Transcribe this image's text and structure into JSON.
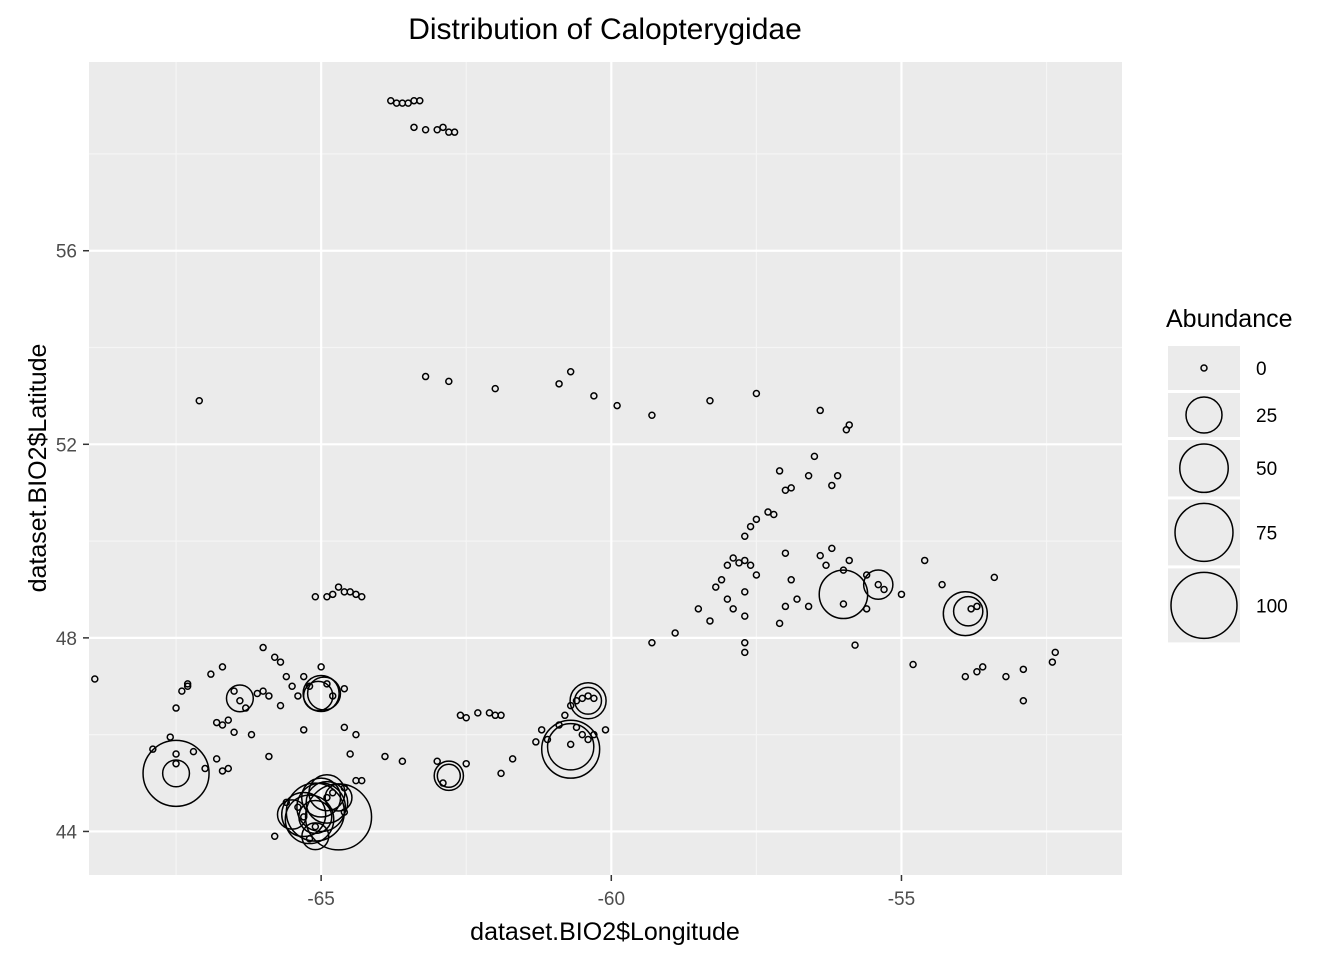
{
  "chart_data": {
    "type": "scatter",
    "title": "Distribution of Calopterygidae",
    "xlabel": "dataset.BIO2$Longitude",
    "ylabel": "dataset.BIO2$Latitude",
    "xlim": [
      -69.0,
      -51.2
    ],
    "ylim": [
      43.1,
      59.9
    ],
    "x_ticks": [
      -65,
      -60,
      -55
    ],
    "y_ticks": [
      44,
      48,
      52,
      56
    ],
    "x_tick_labels": [
      "-65",
      "-60",
      "-55"
    ],
    "y_tick_labels": [
      "44",
      "48",
      "52",
      "56"
    ],
    "grid": true,
    "legend": {
      "title": "Abundance",
      "position": "right",
      "entries": [
        {
          "label": "0",
          "value": 0
        },
        {
          "label": "25",
          "value": 25
        },
        {
          "label": "50",
          "value": 50
        },
        {
          "label": "75",
          "value": 75
        },
        {
          "label": "100",
          "value": 100
        }
      ]
    },
    "series": [
      {
        "points": [
          [
            -63.8,
            59.1,
            0
          ],
          [
            -63.7,
            59.05,
            0
          ],
          [
            -63.6,
            59.05,
            0
          ],
          [
            -63.5,
            59.05,
            0
          ],
          [
            -63.4,
            59.1,
            0
          ],
          [
            -63.3,
            59.1,
            0
          ],
          [
            -63.4,
            58.55,
            0
          ],
          [
            -63.2,
            58.5,
            0
          ],
          [
            -63.0,
            58.5,
            0
          ],
          [
            -62.9,
            58.55,
            0
          ],
          [
            -62.8,
            58.45,
            0
          ],
          [
            -62.7,
            58.45,
            0
          ],
          [
            -68.9,
            47.15,
            0
          ],
          [
            -67.1,
            52.9,
            0
          ],
          [
            -63.2,
            53.4,
            0
          ],
          [
            -62.8,
            53.3,
            0
          ],
          [
            -62.0,
            53.15,
            0
          ],
          [
            -60.9,
            53.25,
            0
          ],
          [
            -60.7,
            53.5,
            0
          ],
          [
            -60.3,
            53.0,
            0
          ],
          [
            -59.9,
            52.8,
            0
          ],
          [
            -59.3,
            52.6,
            0
          ],
          [
            -58.3,
            52.9,
            0
          ],
          [
            -57.5,
            53.05,
            0
          ],
          [
            -56.4,
            52.7,
            0
          ],
          [
            -55.9,
            52.4,
            0
          ],
          [
            -55.95,
            52.3,
            0
          ],
          [
            -57.1,
            51.45,
            0
          ],
          [
            -56.9,
            51.1,
            0
          ],
          [
            -56.6,
            51.35,
            0
          ],
          [
            -56.5,
            51.75,
            0
          ],
          [
            -56.2,
            51.15,
            0
          ],
          [
            -56.1,
            51.35,
            0
          ],
          [
            -57.7,
            50.1,
            0
          ],
          [
            -57.6,
            50.3,
            0
          ],
          [
            -57.5,
            50.45,
            0
          ],
          [
            -57.3,
            50.6,
            0
          ],
          [
            -57.2,
            50.55,
            0
          ],
          [
            -57.0,
            51.05,
            0
          ],
          [
            -58.0,
            49.5,
            0
          ],
          [
            -57.9,
            49.65,
            0
          ],
          [
            -57.8,
            49.55,
            0
          ],
          [
            -57.7,
            49.6,
            0
          ],
          [
            -57.6,
            49.5,
            0
          ],
          [
            -57.5,
            49.3,
            0
          ],
          [
            -57.0,
            49.75,
            0
          ],
          [
            -56.9,
            49.2,
            0
          ],
          [
            -56.4,
            49.7,
            0
          ],
          [
            -56.2,
            49.85,
            0
          ],
          [
            -55.9,
            49.6,
            0
          ],
          [
            -55.6,
            49.3,
            0
          ],
          [
            -58.1,
            49.2,
            0
          ],
          [
            -58.2,
            49.05,
            0
          ],
          [
            -58.0,
            48.8,
            0
          ],
          [
            -57.9,
            48.6,
            0
          ],
          [
            -57.7,
            48.45,
            0
          ],
          [
            -57.7,
            48.95,
            0
          ],
          [
            -58.5,
            48.6,
            0
          ],
          [
            -58.3,
            48.35,
            0
          ],
          [
            -58.9,
            48.1,
            0
          ],
          [
            -59.3,
            47.9,
            0
          ],
          [
            -57.7,
            47.9,
            0
          ],
          [
            -57.7,
            47.7,
            0
          ],
          [
            -57.0,
            48.65,
            0
          ],
          [
            -56.8,
            48.8,
            0
          ],
          [
            -56.6,
            48.65,
            0
          ],
          [
            -56.0,
            48.7,
            0
          ],
          [
            -55.8,
            47.85,
            0
          ],
          [
            -55.6,
            48.6,
            0
          ],
          [
            -55.4,
            49.1,
            0
          ],
          [
            -55.3,
            49.0,
            0
          ],
          [
            -55.0,
            48.9,
            0
          ],
          [
            -54.6,
            49.6,
            0
          ],
          [
            -54.3,
            49.1,
            0
          ],
          [
            -53.8,
            48.6,
            0
          ],
          [
            -53.7,
            48.65,
            0
          ],
          [
            -53.4,
            49.25,
            0
          ],
          [
            -54.8,
            47.45,
            0
          ],
          [
            -53.9,
            47.2,
            0
          ],
          [
            -53.7,
            47.3,
            0
          ],
          [
            -53.6,
            47.4,
            0
          ],
          [
            -53.2,
            47.2,
            0
          ],
          [
            -52.9,
            47.35,
            0
          ],
          [
            -52.9,
            46.7,
            0
          ],
          [
            -52.4,
            47.5,
            0
          ],
          [
            -52.35,
            47.7,
            0
          ],
          [
            -57.1,
            48.3,
            0
          ],
          [
            -56.3,
            49.5,
            0
          ],
          [
            -56.0,
            49.4,
            0
          ],
          [
            -65.1,
            48.85,
            0
          ],
          [
            -64.9,
            48.85,
            0
          ],
          [
            -64.8,
            48.9,
            0
          ],
          [
            -64.7,
            49.05,
            0
          ],
          [
            -64.6,
            48.95,
            0
          ],
          [
            -64.5,
            48.95,
            0
          ],
          [
            -64.4,
            48.9,
            0
          ],
          [
            -64.3,
            48.85,
            0
          ],
          [
            -66.0,
            47.8,
            0
          ],
          [
            -65.8,
            47.6,
            0
          ],
          [
            -65.7,
            47.5,
            0
          ],
          [
            -65.6,
            47.2,
            0
          ],
          [
            -65.5,
            47.0,
            0
          ],
          [
            -65.4,
            46.8,
            0
          ],
          [
            -65.3,
            47.2,
            0
          ],
          [
            -65.2,
            47.0,
            0
          ],
          [
            -65.0,
            47.4,
            0
          ],
          [
            -64.9,
            47.05,
            0
          ],
          [
            -64.8,
            46.8,
            0
          ],
          [
            -64.6,
            46.95,
            0
          ],
          [
            -66.9,
            47.25,
            0
          ],
          [
            -66.7,
            47.4,
            0
          ],
          [
            -66.5,
            46.9,
            0
          ],
          [
            -66.4,
            46.7,
            0
          ],
          [
            -66.3,
            46.55,
            0
          ],
          [
            -66.1,
            46.85,
            0
          ],
          [
            -66.0,
            46.9,
            0
          ],
          [
            -65.9,
            46.8,
            0
          ],
          [
            -65.7,
            46.6,
            0
          ],
          [
            -67.3,
            47.05,
            0
          ],
          [
            -67.4,
            46.9,
            0
          ],
          [
            -67.5,
            46.55,
            0
          ],
          [
            -67.3,
            47.0,
            0
          ],
          [
            -66.6,
            46.3,
            0
          ],
          [
            -66.7,
            46.2,
            0
          ],
          [
            -66.8,
            46.25,
            0
          ],
          [
            -66.5,
            46.05,
            0
          ],
          [
            -66.2,
            46.0,
            0
          ],
          [
            -67.6,
            45.95,
            0
          ],
          [
            -67.9,
            45.7,
            0
          ],
          [
            -67.2,
            45.65,
            0
          ],
          [
            -67.5,
            45.6,
            0
          ],
          [
            -67.5,
            45.4,
            0
          ],
          [
            -67.0,
            45.3,
            0
          ],
          [
            -66.8,
            45.5,
            0
          ],
          [
            -66.7,
            45.25,
            0
          ],
          [
            -66.6,
            45.3,
            0
          ],
          [
            -65.9,
            45.55,
            0
          ],
          [
            -65.3,
            46.1,
            0
          ],
          [
            -64.6,
            46.15,
            0
          ],
          [
            -64.4,
            46.0,
            0
          ],
          [
            -64.5,
            45.6,
            0
          ],
          [
            -63.9,
            45.55,
            0
          ],
          [
            -63.6,
            45.45,
            0
          ],
          [
            -63.0,
            45.45,
            0
          ],
          [
            -62.5,
            45.4,
            0
          ],
          [
            -62.6,
            46.4,
            0
          ],
          [
            -62.5,
            46.35,
            0
          ],
          [
            -62.3,
            46.45,
            0
          ],
          [
            -62.1,
            46.45,
            0
          ],
          [
            -62.0,
            46.4,
            0
          ],
          [
            -61.9,
            46.4,
            0
          ],
          [
            -61.7,
            45.5,
            0
          ],
          [
            -61.9,
            45.2,
            0
          ],
          [
            -61.3,
            45.85,
            0
          ],
          [
            -61.2,
            46.1,
            0
          ],
          [
            -61.1,
            45.9,
            0
          ],
          [
            -60.9,
            46.2,
            0
          ],
          [
            -60.8,
            46.4,
            0
          ],
          [
            -60.7,
            46.6,
            0
          ],
          [
            -60.6,
            46.7,
            0
          ],
          [
            -60.5,
            46.75,
            0
          ],
          [
            -60.4,
            46.8,
            0
          ],
          [
            -60.3,
            46.75,
            0
          ],
          [
            -60.6,
            46.15,
            0
          ],
          [
            -60.5,
            46.0,
            0
          ],
          [
            -60.4,
            45.9,
            0
          ],
          [
            -60.3,
            46.0,
            0
          ],
          [
            -60.1,
            46.1,
            0
          ],
          [
            -60.7,
            45.8,
            0
          ],
          [
            -65.8,
            43.9,
            0
          ],
          [
            -65.6,
            44.6,
            0
          ],
          [
            -65.4,
            44.5,
            0
          ],
          [
            -65.3,
            44.3,
            0
          ],
          [
            -65.1,
            44.1,
            0
          ],
          [
            -64.9,
            44.7,
            0
          ],
          [
            -64.8,
            44.8,
            0
          ],
          [
            -64.6,
            44.9,
            0
          ],
          [
            -64.4,
            45.05,
            0
          ],
          [
            -64.3,
            45.05,
            0
          ],
          [
            -64.6,
            44.4,
            0
          ],
          [
            -65.2,
            43.85,
            0
          ],
          [
            -62.9,
            45.0,
            0
          ]
        ]
      },
      {
        "points": [
          [
            -67.5,
            45.2,
            100
          ],
          [
            -67.5,
            45.2,
            12
          ],
          [
            -66.4,
            46.75,
            12
          ],
          [
            -65.0,
            46.85,
            25
          ],
          [
            -64.95,
            46.85,
            20
          ],
          [
            -65.05,
            46.8,
            15
          ],
          [
            -64.7,
            44.3,
            100
          ],
          [
            -65.1,
            44.4,
            75
          ],
          [
            -65.2,
            44.25,
            50
          ],
          [
            -65.3,
            44.35,
            40
          ],
          [
            -65.0,
            44.5,
            50
          ],
          [
            -64.9,
            44.6,
            35
          ],
          [
            -65.0,
            44.7,
            30
          ],
          [
            -65.1,
            44.3,
            20
          ],
          [
            -64.9,
            44.8,
            25
          ],
          [
            -65.5,
            44.35,
            15
          ],
          [
            -64.7,
            44.7,
            12
          ],
          [
            -65.1,
            43.9,
            12
          ],
          [
            -60.7,
            45.7,
            75
          ],
          [
            -60.7,
            45.75,
            45
          ],
          [
            -60.4,
            46.7,
            25
          ],
          [
            -60.4,
            46.7,
            12
          ],
          [
            -62.8,
            45.15,
            15
          ],
          [
            -62.8,
            45.15,
            8
          ],
          [
            -56.0,
            48.9,
            50
          ],
          [
            -53.9,
            48.5,
            40
          ],
          [
            -53.85,
            48.55,
            15
          ],
          [
            -55.4,
            49.1,
            15
          ]
        ]
      }
    ]
  }
}
